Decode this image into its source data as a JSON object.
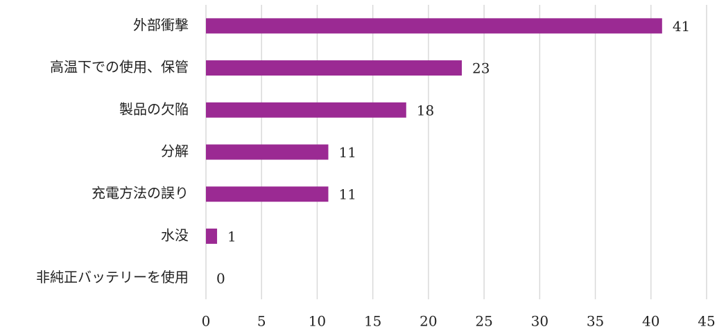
{
  "chart_data": {
    "type": "bar",
    "orientation": "horizontal",
    "categories": [
      "外部衝撃",
      "高温下での使用、保管",
      "製品の欠陥",
      "分解",
      "充電方法の誤り",
      "水没",
      "非純正バッテリーを使用"
    ],
    "values": [
      41,
      23,
      18,
      11,
      11,
      1,
      0
    ],
    "color": "#9b2a93",
    "xlim": [
      0,
      45
    ],
    "xticks": [
      0,
      5,
      10,
      15,
      20,
      25,
      30,
      35,
      40,
      45
    ],
    "grid": true
  }
}
